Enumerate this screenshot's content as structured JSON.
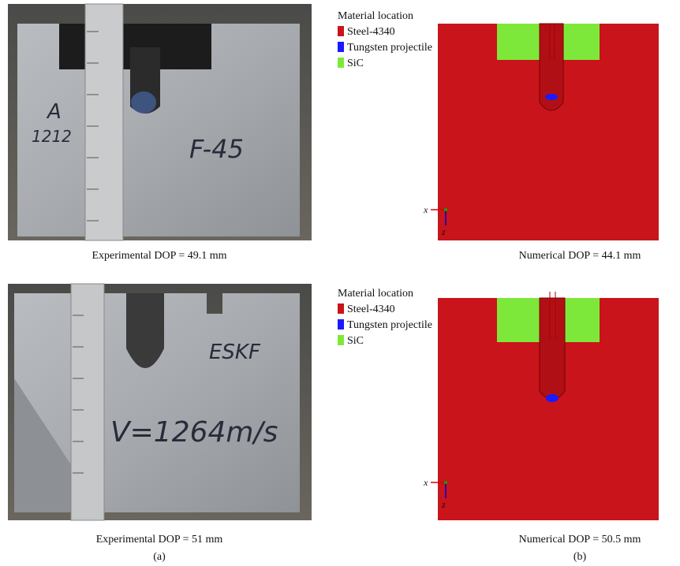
{
  "panel_a": {
    "label": "(a)",
    "photos": [
      {
        "caption": "Experimental DOP = 49.1 mm",
        "markings": [
          "A",
          "1212",
          "F-45"
        ]
      },
      {
        "caption": "Experimental DOP = 51 mm",
        "markings": [
          "ESKF",
          "V=1264m/s"
        ]
      }
    ]
  },
  "panel_b": {
    "label": "(b)",
    "simulations": [
      {
        "caption": "Numerical DOP = 44.1 mm",
        "legend_title": "Material location",
        "legend": [
          "Steel-4340",
          "Tungsten projectile",
          "SiC"
        ],
        "axes": [
          "x",
          "z"
        ]
      },
      {
        "caption": "Numerical DOP = 50.5 mm",
        "legend_title": "Material location",
        "legend": [
          "Steel-4340",
          "Tungsten projectile",
          "SiC"
        ],
        "axes": [
          "x",
          "z"
        ]
      }
    ]
  }
}
